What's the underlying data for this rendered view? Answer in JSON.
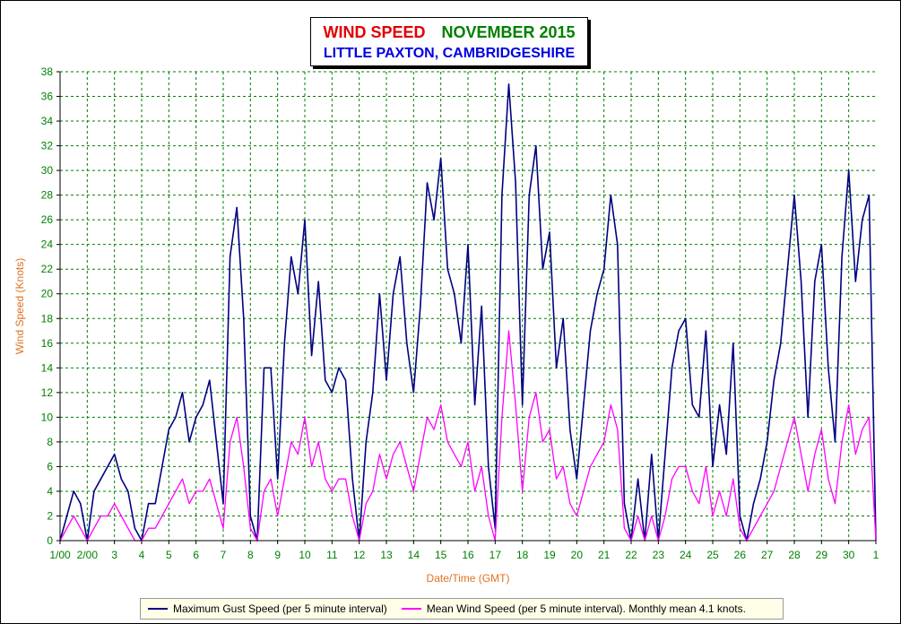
{
  "chart_data": {
    "type": "line",
    "title_part1": "WIND SPEED",
    "title_part2": "NOVEMBER 2015",
    "subtitle": "LITTLE PAXTON, CAMBRIDGESHIRE",
    "xlabel": "Date/Time (GMT)",
    "ylabel": "Wind Speed (Knots)",
    "ylim": [
      0,
      38
    ],
    "xlim": [
      1,
      31
    ],
    "yticks": [
      0,
      2,
      4,
      6,
      8,
      10,
      12,
      14,
      16,
      18,
      20,
      22,
      24,
      26,
      28,
      30,
      32,
      34,
      36,
      38
    ],
    "xtick_labels": [
      "1/00",
      "2/00",
      "3",
      "4",
      "5",
      "6",
      "7",
      "8",
      "9",
      "10",
      "11",
      "12",
      "13",
      "14",
      "15",
      "16",
      "17",
      "18",
      "19",
      "20",
      "21",
      "22",
      "23",
      "24",
      "25",
      "26",
      "27",
      "28",
      "29",
      "30",
      "1"
    ],
    "grid": true,
    "legend_position": "bottom",
    "series": [
      {
        "name": "Maximum Gust Speed (per 5 minute interval)",
        "color": "#000080",
        "x": [
          1.0,
          1.25,
          1.5,
          1.75,
          2.0,
          2.25,
          2.5,
          2.75,
          3.0,
          3.25,
          3.5,
          3.75,
          4.0,
          4.25,
          4.5,
          4.75,
          5.0,
          5.25,
          5.5,
          5.75,
          6.0,
          6.25,
          6.5,
          6.75,
          7.0,
          7.25,
          7.5,
          7.75,
          8.0,
          8.25,
          8.5,
          8.75,
          9.0,
          9.25,
          9.5,
          9.75,
          10.0,
          10.25,
          10.5,
          10.75,
          11.0,
          11.25,
          11.5,
          11.75,
          12.0,
          12.25,
          12.5,
          12.75,
          13.0,
          13.25,
          13.5,
          13.75,
          14.0,
          14.25,
          14.5,
          14.75,
          15.0,
          15.25,
          15.5,
          15.75,
          16.0,
          16.25,
          16.5,
          16.75,
          17.0,
          17.25,
          17.5,
          17.75,
          18.0,
          18.25,
          18.5,
          18.75,
          19.0,
          19.25,
          19.5,
          19.75,
          20.0,
          20.25,
          20.5,
          20.75,
          21.0,
          21.25,
          21.5,
          21.75,
          22.0,
          22.25,
          22.5,
          22.75,
          23.0,
          23.25,
          23.5,
          23.75,
          24.0,
          24.25,
          24.5,
          24.75,
          25.0,
          25.25,
          25.5,
          25.75,
          26.0,
          26.25,
          26.5,
          26.75,
          27.0,
          27.25,
          27.5,
          27.75,
          28.0,
          28.25,
          28.5,
          28.75,
          29.0,
          29.25,
          29.5,
          29.75,
          30.0,
          30.25,
          30.5,
          30.75,
          31.0
        ],
        "values": [
          0,
          2,
          4,
          3,
          0,
          4,
          5,
          6,
          7,
          5,
          4,
          1,
          0,
          3,
          3,
          6,
          9,
          10,
          12,
          8,
          10,
          11,
          13,
          8,
          3,
          23,
          27,
          18,
          2,
          0,
          14,
          14,
          5,
          16,
          23,
          20,
          26,
          15,
          21,
          13,
          12,
          14,
          13,
          5,
          0,
          8,
          12,
          20,
          13,
          20,
          23,
          16,
          12,
          19,
          29,
          26,
          31,
          22,
          20,
          16,
          24,
          11,
          19,
          6,
          1,
          28,
          37,
          29,
          11,
          28,
          32,
          22,
          25,
          14,
          18,
          9,
          5,
          11,
          17,
          20,
          22,
          28,
          24,
          3,
          0,
          5,
          0,
          7,
          0,
          7,
          14,
          17,
          18,
          11,
          10,
          17,
          6,
          11,
          7,
          16,
          2,
          0,
          3,
          5,
          8,
          13,
          16,
          22,
          28,
          21,
          10,
          21,
          24,
          14,
          8,
          23,
          30,
          21,
          26,
          28,
          0
        ]
      },
      {
        "name": "Mean Wind Speed (per 5 minute interval). Monthly mean 4.1 knots.",
        "color": "#ff00ff",
        "x": [
          1.0,
          1.25,
          1.5,
          1.75,
          2.0,
          2.25,
          2.5,
          2.75,
          3.0,
          3.25,
          3.5,
          3.75,
          4.0,
          4.25,
          4.5,
          4.75,
          5.0,
          5.25,
          5.5,
          5.75,
          6.0,
          6.25,
          6.5,
          6.75,
          7.0,
          7.25,
          7.5,
          7.75,
          8.0,
          8.25,
          8.5,
          8.75,
          9.0,
          9.25,
          9.5,
          9.75,
          10.0,
          10.25,
          10.5,
          10.75,
          11.0,
          11.25,
          11.5,
          11.75,
          12.0,
          12.25,
          12.5,
          12.75,
          13.0,
          13.25,
          13.5,
          13.75,
          14.0,
          14.25,
          14.5,
          14.75,
          15.0,
          15.25,
          15.5,
          15.75,
          16.0,
          16.25,
          16.5,
          16.75,
          17.0,
          17.25,
          17.5,
          17.75,
          18.0,
          18.25,
          18.5,
          18.75,
          19.0,
          19.25,
          19.5,
          19.75,
          20.0,
          20.25,
          20.5,
          20.75,
          21.0,
          21.25,
          21.5,
          21.75,
          22.0,
          22.25,
          22.5,
          22.75,
          23.0,
          23.25,
          23.5,
          23.75,
          24.0,
          24.25,
          24.5,
          24.75,
          25.0,
          25.25,
          25.5,
          25.75,
          26.0,
          26.25,
          26.5,
          26.75,
          27.0,
          27.25,
          27.5,
          27.75,
          28.0,
          28.25,
          28.5,
          28.75,
          29.0,
          29.25,
          29.5,
          29.75,
          30.0,
          30.25,
          30.5,
          30.75,
          31.0
        ],
        "values": [
          0,
          1,
          2,
          1,
          0,
          1,
          2,
          2,
          3,
          2,
          1,
          0,
          0,
          1,
          1,
          2,
          3,
          4,
          5,
          3,
          4,
          4,
          5,
          3,
          1,
          8,
          10,
          6,
          1,
          0,
          4,
          5,
          2,
          5,
          8,
          7,
          10,
          6,
          8,
          5,
          4,
          5,
          5,
          2,
          0,
          3,
          4,
          7,
          5,
          7,
          8,
          6,
          4,
          7,
          10,
          9,
          11,
          8,
          7,
          6,
          8,
          4,
          6,
          2,
          0,
          10,
          17,
          11,
          4,
          10,
          12,
          8,
          9,
          5,
          6,
          3,
          2,
          4,
          6,
          7,
          8,
          11,
          9,
          1,
          0,
          2,
          0,
          2,
          0,
          2,
          5,
          6,
          6,
          4,
          3,
          6,
          2,
          4,
          2,
          5,
          1,
          0,
          1,
          2,
          3,
          4,
          6,
          8,
          10,
          7,
          4,
          7,
          9,
          5,
          3,
          8,
          11,
          7,
          9,
          10,
          0
        ]
      }
    ]
  }
}
